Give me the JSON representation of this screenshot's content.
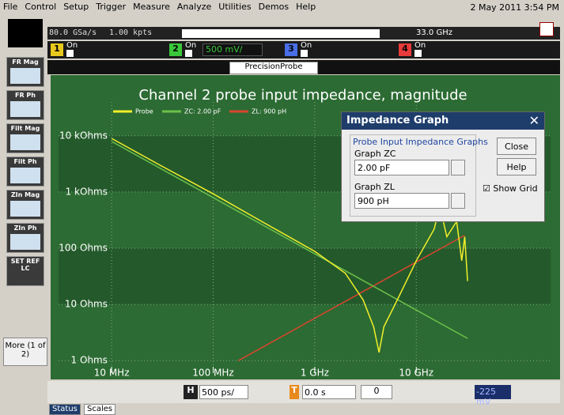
{
  "menu": [
    "File",
    "Control",
    "Setup",
    "Trigger",
    "Measure",
    "Analyze",
    "Utilities",
    "Demos",
    "Help"
  ],
  "clock": "2 May 2011  3:54 PM",
  "acquisition": {
    "sample_rate": "80.0 GSa/s",
    "memory": "1.00 kpts",
    "bandwidth": "33.0 GHz"
  },
  "channels": [
    {
      "number": "1",
      "state": "On"
    },
    {
      "number": "2",
      "state": "On",
      "scale": "500 mV/"
    },
    {
      "number": "3",
      "state": "On"
    },
    {
      "number": "4",
      "state": "On"
    }
  ],
  "tab": "PrecisionProbe",
  "sidebar": [
    "FR Mag",
    "FR Ph",
    "Filt Mag",
    "Filt Ph",
    "ZIn Mag",
    "ZIn Ph",
    "SET REF LC"
  ],
  "more_button": "More (1 of 2)",
  "chart": {
    "type": "line",
    "title": "Channel 2 probe input impedance, magnitude",
    "log_x": true,
    "log_y": true,
    "grid": true,
    "xlim": [
      3000000,
      210000000000
    ],
    "ylim": [
      0.6,
      40000
    ],
    "xticks": [
      {
        "value": 10000000,
        "label": "10 MHz"
      },
      {
        "value": 100000000,
        "label": "100 MHz"
      },
      {
        "value": 1000000000,
        "label": "1 GHz"
      },
      {
        "value": 10000000000,
        "label": "10 GHz"
      }
    ],
    "yticks": [
      {
        "value": 10000,
        "label": "10 kOhms"
      },
      {
        "value": 1000,
        "label": "1 kOhms"
      },
      {
        "value": 100,
        "label": "100 Ohms"
      },
      {
        "value": 10,
        "label": "10 Ohms"
      },
      {
        "value": 1,
        "label": "1 Ohms"
      }
    ],
    "series": [
      {
        "name": "Probe",
        "color": "#f2ef2a",
        "x": [
          10000000,
          30000000,
          100000000,
          300000000,
          1000000000,
          2000000000,
          3000000000,
          3800000000,
          4300000000,
          4800000000,
          6500000000,
          10000000000,
          15000000000,
          17000000000,
          20000000000,
          25000000000,
          28000000000,
          30000000000,
          32000000000
        ],
        "values": [
          9000,
          3000,
          930,
          300,
          88,
          36,
          12,
          4,
          1.4,
          4,
          12,
          60,
          220,
          570,
          160,
          300,
          60,
          160,
          26
        ]
      },
      {
        "name": "ZC: 2.00 pF",
        "color": "#6cc04a",
        "x": [
          10000000,
          32000000000
        ],
        "values": [
          7958,
          2.49
        ]
      },
      {
        "name": "ZL: 900 pH",
        "color": "#d8452e",
        "x": [
          177000000,
          30000000000
        ],
        "values": [
          1,
          170
        ]
      }
    ]
  },
  "dialog": {
    "title": "Impedance Graph",
    "group": "Probe Input Impedance Graphs",
    "zc_label": "Graph ZC",
    "zc_value": "2.00 pF",
    "zl_label": "Graph ZL",
    "zl_value": "900 pH",
    "close": "Close",
    "help": "Help",
    "show_grid": "Show Grid"
  },
  "toolbar": {
    "horizontal": "H",
    "timebase": "500 ps/",
    "trigger": "T",
    "delay": "0.0 s",
    "zero": "0",
    "trigger_level": "-225 mV"
  },
  "tabs": [
    "Status",
    "Scales"
  ]
}
